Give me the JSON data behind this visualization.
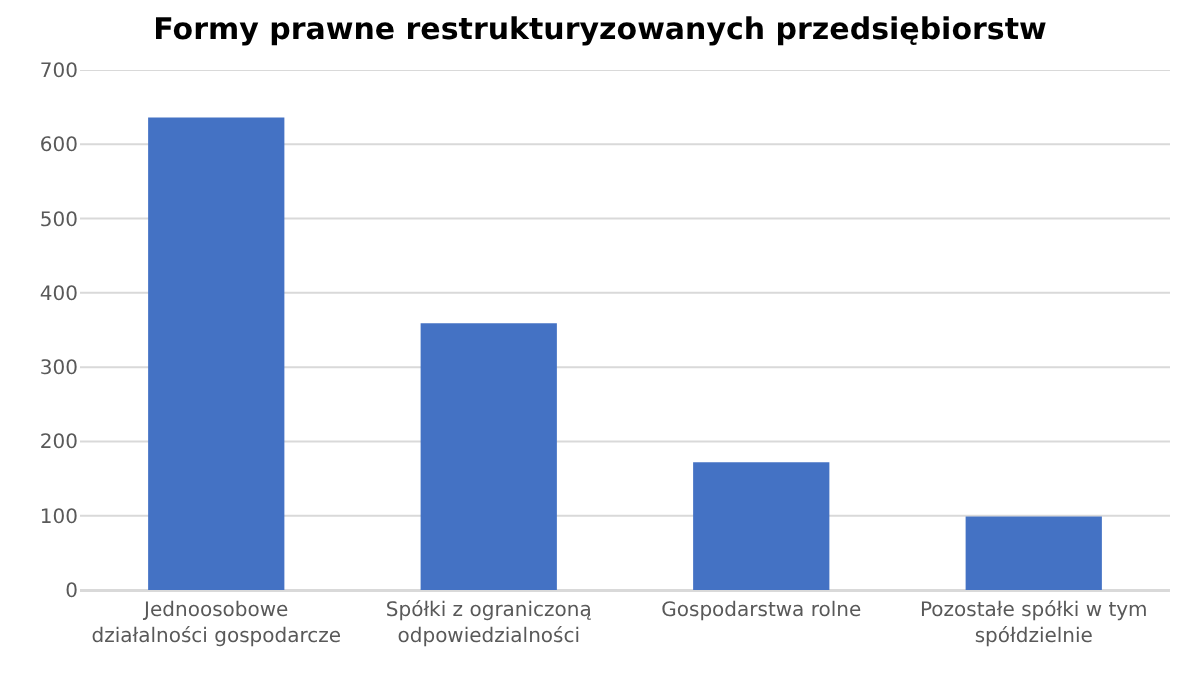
{
  "chart_data": {
    "type": "bar",
    "title": "Formy prawne restrukturyzowanych przedsiębiorstw",
    "categories": [
      "Jednoosobowe działalności gospodarcze",
      "Spółki z ograniczoną odpowiedzialności",
      "Gospodarstwa rolne",
      "Pozostałe spółki w tym spółdzielnie"
    ],
    "values": [
      636,
      359,
      172,
      99
    ],
    "color": "#4472c4",
    "ylim": [
      0,
      700
    ],
    "yticks": [
      0,
      100,
      200,
      300,
      400,
      500,
      600,
      700
    ],
    "grid": "y"
  }
}
